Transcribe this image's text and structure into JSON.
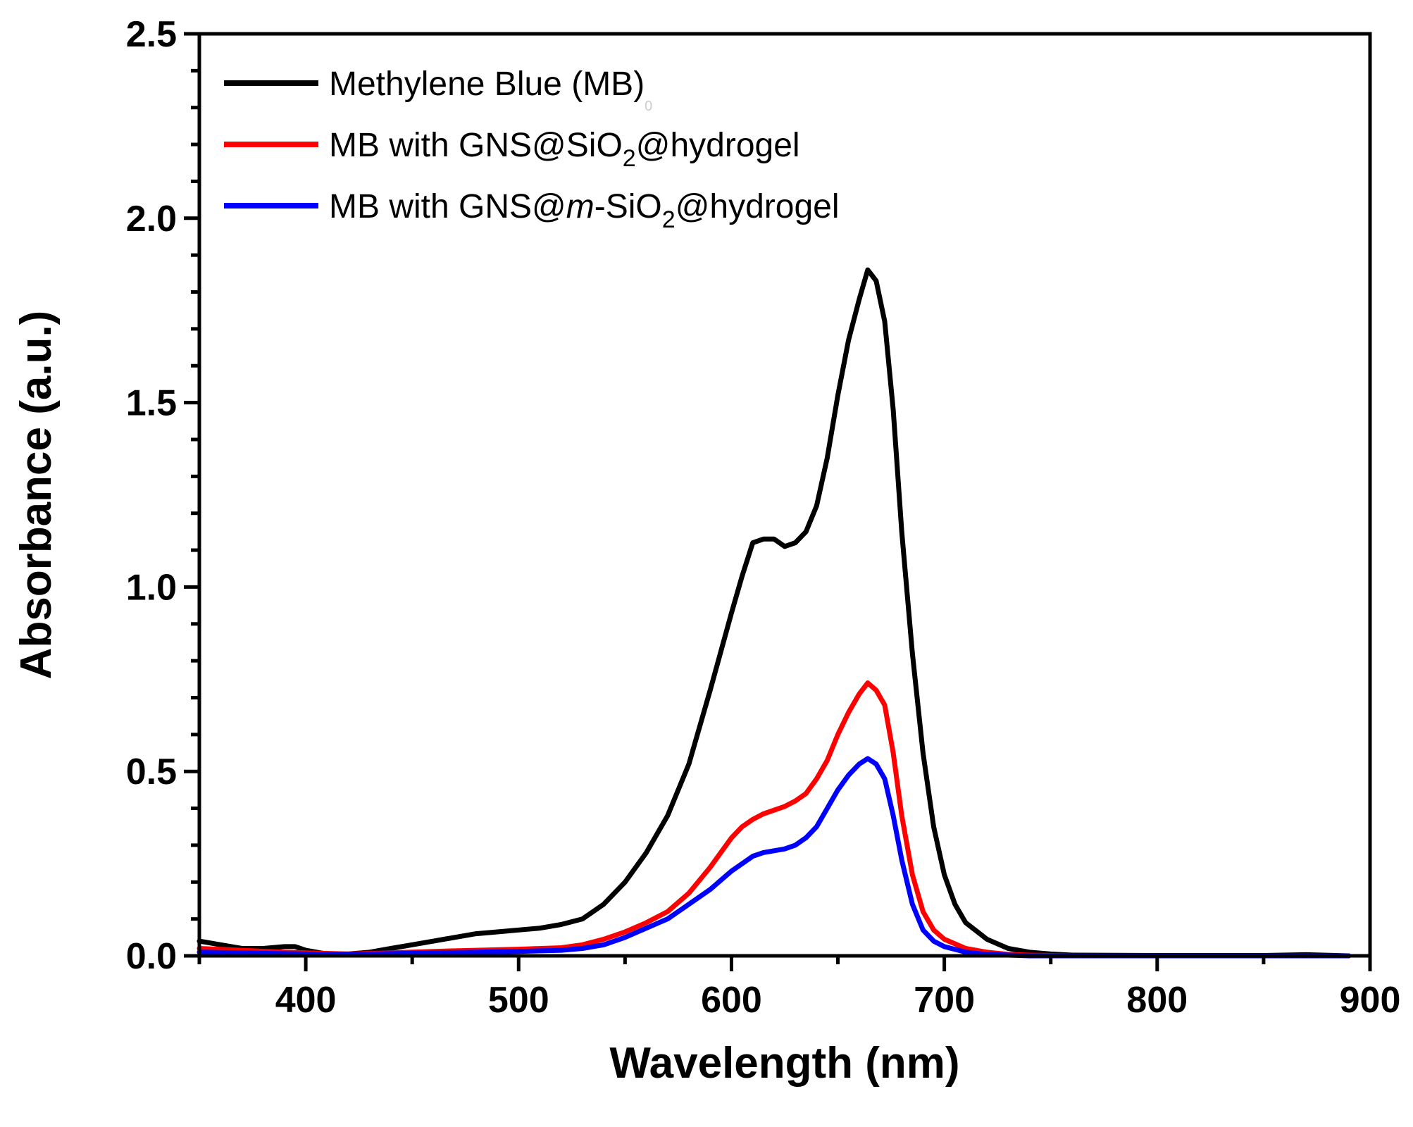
{
  "chart_data": {
    "type": "line",
    "title": "",
    "xlabel": "Wavelength (nm)",
    "ylabel": "Absorbance (a.u.)",
    "xlim": [
      350,
      900
    ],
    "ylim": [
      0.0,
      2.5
    ],
    "x_ticks": [
      400,
      500,
      600,
      700,
      800,
      900
    ],
    "x_tick_labels": [
      "400",
      "500",
      "600",
      "700",
      "800",
      "900"
    ],
    "y_ticks": [
      0.0,
      0.5,
      1.0,
      1.5,
      2.0,
      2.5
    ],
    "y_tick_labels": [
      "0.0",
      "0.5",
      "1.0",
      "1.5",
      "2.0",
      "2.5"
    ],
    "grid": false,
    "legend_position": "top-left",
    "series": [
      {
        "name": "Methylene Blue (MB)",
        "legend": {
          "prefix": "Methylene Blue (MB)",
          "subscript": "0",
          "italic": "",
          "middle": "",
          "subscript2": "",
          "suffix": ""
        },
        "color": "#000000",
        "points": [
          [
            350,
            0.04
          ],
          [
            360,
            0.03
          ],
          [
            370,
            0.02
          ],
          [
            380,
            0.02
          ],
          [
            390,
            0.025
          ],
          [
            395,
            0.025
          ],
          [
            400,
            0.015
          ],
          [
            410,
            0.005
          ],
          [
            420,
            0.005
          ],
          [
            430,
            0.01
          ],
          [
            440,
            0.02
          ],
          [
            450,
            0.03
          ],
          [
            460,
            0.04
          ],
          [
            470,
            0.05
          ],
          [
            480,
            0.06
          ],
          [
            490,
            0.065
          ],
          [
            500,
            0.07
          ],
          [
            510,
            0.075
          ],
          [
            520,
            0.085
          ],
          [
            530,
            0.1
          ],
          [
            540,
            0.14
          ],
          [
            550,
            0.2
          ],
          [
            560,
            0.28
          ],
          [
            570,
            0.38
          ],
          [
            580,
            0.52
          ],
          [
            590,
            0.72
          ],
          [
            600,
            0.93
          ],
          [
            605,
            1.03
          ],
          [
            610,
            1.12
          ],
          [
            615,
            1.13
          ],
          [
            620,
            1.13
          ],
          [
            625,
            1.11
          ],
          [
            630,
            1.12
          ],
          [
            635,
            1.15
          ],
          [
            640,
            1.22
          ],
          [
            645,
            1.35
          ],
          [
            650,
            1.52
          ],
          [
            655,
            1.67
          ],
          [
            660,
            1.78
          ],
          [
            664,
            1.86
          ],
          [
            668,
            1.83
          ],
          [
            672,
            1.72
          ],
          [
            676,
            1.48
          ],
          [
            680,
            1.15
          ],
          [
            685,
            0.82
          ],
          [
            690,
            0.55
          ],
          [
            695,
            0.35
          ],
          [
            700,
            0.22
          ],
          [
            705,
            0.14
          ],
          [
            710,
            0.09
          ],
          [
            720,
            0.045
          ],
          [
            730,
            0.02
          ],
          [
            740,
            0.01
          ],
          [
            750,
            0.005
          ],
          [
            760,
            0.002
          ],
          [
            800,
            0.001
          ],
          [
            850,
            0.001
          ],
          [
            870,
            0.003
          ],
          [
            890,
            0.0
          ]
        ]
      },
      {
        "name": "MB with GNS@SiO2@hydrogel",
        "legend": {
          "prefix": "MB with GNS@SiO",
          "subscript": "2",
          "italic": "",
          "middle": "",
          "subscript2": "",
          "suffix": "@hydrogel"
        },
        "color": "#ff0000",
        "points": [
          [
            350,
            0.02
          ],
          [
            370,
            0.015
          ],
          [
            390,
            0.01
          ],
          [
            400,
            0.008
          ],
          [
            420,
            0.005
          ],
          [
            440,
            0.008
          ],
          [
            460,
            0.012
          ],
          [
            480,
            0.015
          ],
          [
            500,
            0.018
          ],
          [
            520,
            0.022
          ],
          [
            530,
            0.03
          ],
          [
            540,
            0.045
          ],
          [
            550,
            0.065
          ],
          [
            560,
            0.09
          ],
          [
            570,
            0.12
          ],
          [
            580,
            0.17
          ],
          [
            590,
            0.24
          ],
          [
            600,
            0.32
          ],
          [
            605,
            0.35
          ],
          [
            610,
            0.37
          ],
          [
            615,
            0.385
          ],
          [
            620,
            0.395
          ],
          [
            625,
            0.405
          ],
          [
            630,
            0.42
          ],
          [
            635,
            0.44
          ],
          [
            640,
            0.48
          ],
          [
            645,
            0.53
          ],
          [
            650,
            0.6
          ],
          [
            655,
            0.66
          ],
          [
            660,
            0.71
          ],
          [
            664,
            0.74
          ],
          [
            668,
            0.72
          ],
          [
            672,
            0.68
          ],
          [
            676,
            0.55
          ],
          [
            680,
            0.38
          ],
          [
            685,
            0.22
          ],
          [
            690,
            0.12
          ],
          [
            695,
            0.07
          ],
          [
            700,
            0.045
          ],
          [
            710,
            0.02
          ],
          [
            720,
            0.01
          ],
          [
            730,
            0.004
          ],
          [
            740,
            0.002
          ],
          [
            760,
            0.0
          ],
          [
            890,
            0.0
          ]
        ]
      },
      {
        "name": "MB with GNS@m-SiO2@hydrogel",
        "legend": {
          "prefix": "MB with GNS@",
          "subscript": "",
          "italic": "m",
          "middle": "-SiO",
          "subscript2": "2",
          "suffix": "@hydrogel"
        },
        "color": "#0000ff",
        "points": [
          [
            350,
            0.01
          ],
          [
            370,
            0.008
          ],
          [
            390,
            0.006
          ],
          [
            400,
            0.005
          ],
          [
            420,
            0.004
          ],
          [
            440,
            0.006
          ],
          [
            460,
            0.008
          ],
          [
            480,
            0.01
          ],
          [
            500,
            0.012
          ],
          [
            520,
            0.015
          ],
          [
            530,
            0.02
          ],
          [
            540,
            0.03
          ],
          [
            550,
            0.05
          ],
          [
            560,
            0.075
          ],
          [
            570,
            0.1
          ],
          [
            580,
            0.14
          ],
          [
            590,
            0.18
          ],
          [
            600,
            0.23
          ],
          [
            605,
            0.25
          ],
          [
            610,
            0.27
          ],
          [
            615,
            0.28
          ],
          [
            620,
            0.285
          ],
          [
            625,
            0.29
          ],
          [
            630,
            0.3
          ],
          [
            635,
            0.32
          ],
          [
            640,
            0.35
          ],
          [
            645,
            0.4
          ],
          [
            650,
            0.45
          ],
          [
            655,
            0.49
          ],
          [
            660,
            0.52
          ],
          [
            664,
            0.535
          ],
          [
            668,
            0.52
          ],
          [
            672,
            0.48
          ],
          [
            676,
            0.38
          ],
          [
            680,
            0.26
          ],
          [
            685,
            0.14
          ],
          [
            690,
            0.07
          ],
          [
            695,
            0.04
          ],
          [
            700,
            0.025
          ],
          [
            710,
            0.01
          ],
          [
            720,
            0.004
          ],
          [
            730,
            0.002
          ],
          [
            740,
            0.0
          ],
          [
            890,
            0.0
          ]
        ]
      }
    ]
  }
}
